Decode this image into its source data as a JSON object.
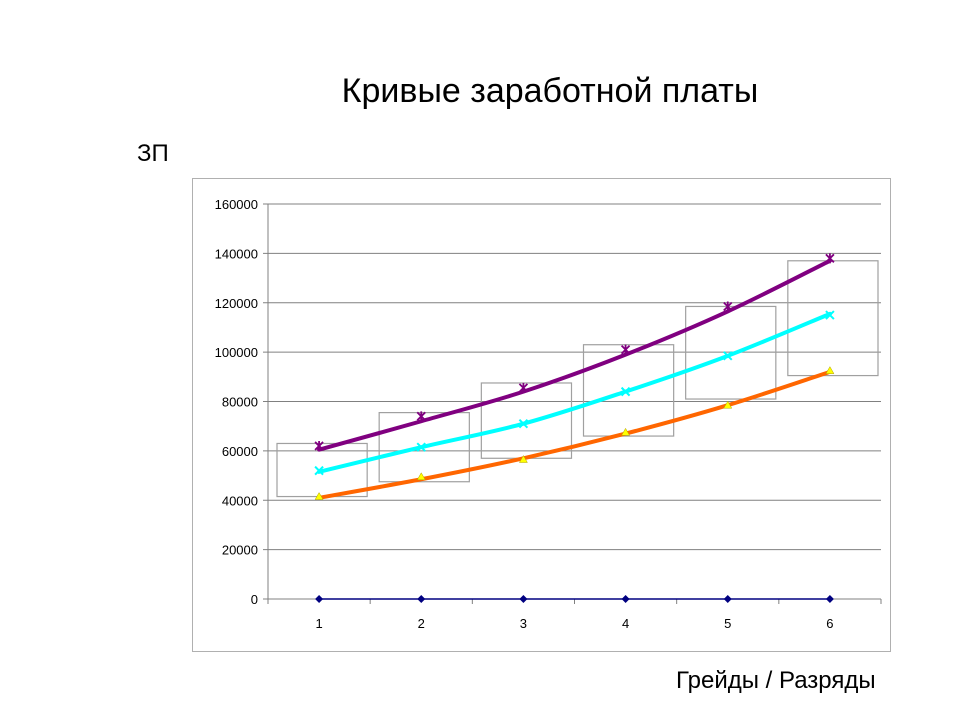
{
  "title": "Кривые заработной платы",
  "ylabel": "ЗП",
  "xlabel": "Грейды / Разряды",
  "chart_data": {
    "type": "line",
    "title": "",
    "xlabel": "Грейды / Разряды",
    "ylabel": "ЗП",
    "categories": [
      "1",
      "2",
      "3",
      "4",
      "5",
      "6"
    ],
    "ylim": [
      0,
      160000
    ],
    "yticks": [
      "0",
      "20000",
      "40000",
      "60000",
      "80000",
      "100000",
      "120000",
      "140000",
      "160000"
    ],
    "grid": true,
    "series": [
      {
        "color": "#000080",
        "marker": "diamond",
        "values": [
          0,
          0,
          0,
          0,
          0,
          0
        ]
      },
      {
        "color": "#FFFF00",
        "marker": "triangle",
        "values": [
          41500,
          49500,
          56500,
          67500,
          78500,
          92500
        ]
      },
      {
        "color": "#00FFFF",
        "marker": "x",
        "values": [
          52000,
          61500,
          71000,
          84000,
          98500,
          115000
        ]
      },
      {
        "color": "#800080",
        "marker": "star",
        "values": [
          62000,
          74000,
          85500,
          101000,
          118500,
          138000
        ]
      }
    ],
    "trendlines": [
      {
        "color": "#FF6600",
        "values": [
          41000,
          48500,
          57000,
          67000,
          78500,
          92000
        ]
      },
      {
        "color": "#00FFFF",
        "values": [
          51500,
          61500,
          71000,
          84000,
          98500,
          115500
        ]
      },
      {
        "color": "#800080",
        "values": [
          60500,
          72000,
          84000,
          99000,
          116500,
          137000
        ]
      }
    ],
    "ranges": [
      {
        "min": 41500,
        "max": 63000
      },
      {
        "min": 47500,
        "max": 75500
      },
      {
        "min": 57000,
        "max": 87500
      },
      {
        "min": 66000,
        "max": 103000
      },
      {
        "min": 81000,
        "max": 118500
      },
      {
        "min": 90500,
        "max": 137000
      }
    ]
  }
}
